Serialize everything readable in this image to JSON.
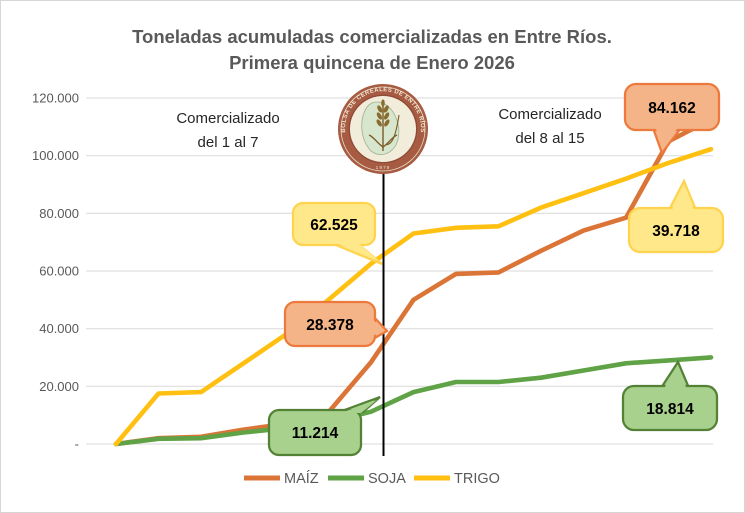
{
  "title": {
    "line1": "Toneladas acumuladas comercializadas en Entre Ríos.",
    "line2": "Primera quincena de Enero 2026"
  },
  "annotations": {
    "left": {
      "line1": "Comercializado",
      "line2": "del 1 al 7"
    },
    "right": {
      "line1": "Comercializado",
      "line2": "del 8 al 15"
    }
  },
  "logo": {
    "ring_text": "BOLSA DE CEREALES DE ENTRE RÍOS",
    "year": "1979",
    "ring_color": "#a65b42",
    "center_color": "#f2ecdb",
    "map_color": "#d9e6ce"
  },
  "legend": [
    {
      "label": "MAÍZ",
      "color": "#db7437"
    },
    {
      "label": "SOJA",
      "color": "#5fa346"
    },
    {
      "label": "TRIGO",
      "color": "#ffc011"
    }
  ],
  "callouts": [
    {
      "value": "62.525",
      "series": "TRIGO",
      "period": "del 1 al 7",
      "fill": "#ffe88a",
      "border": "#ffd34d"
    },
    {
      "value": "28.378",
      "series": "MAÍZ",
      "period": "del 1 al 7",
      "fill": "#f5b488",
      "border": "#ec7a3d"
    },
    {
      "value": "11.214",
      "series": "SOJA",
      "period": "del 1 al 7",
      "fill": "#a9d18e",
      "border": "#538135"
    },
    {
      "value": "84.162",
      "series": "MAÍZ",
      "period": "del 8 al 15",
      "fill": "#f5b488",
      "border": "#ec7a3d"
    },
    {
      "value": "39.718",
      "series": "TRIGO",
      "period": "del 8 al 15",
      "fill": "#ffe88a",
      "border": "#ffd34d"
    },
    {
      "value": "18.814",
      "series": "SOJA",
      "period": "del 8 al 15",
      "fill": "#a9d18e",
      "border": "#538135"
    }
  ],
  "chart_data": {
    "type": "line",
    "title": "Toneladas acumuladas comercializadas en Entre Ríos. Primera quincena de Enero 2026",
    "days": [
      1,
      2,
      3,
      4,
      5,
      6,
      7,
      8,
      9,
      10,
      11,
      12,
      13,
      14,
      15
    ],
    "x_tick_labels_visible": false,
    "ylim": [
      0,
      120000
    ],
    "grid": true,
    "legend_position": "bottom",
    "yticks": [
      {
        "label": "120.000",
        "value": 120000
      },
      {
        "label": "100.000",
        "value": 100000
      },
      {
        "label": "80.000",
        "value": 80000
      },
      {
        "label": "60.000",
        "value": 60000
      },
      {
        "label": "40.000",
        "value": 40000
      },
      {
        "label": "20.000",
        "value": 20000
      },
      {
        "label": "-",
        "value": 0
      }
    ],
    "series": [
      {
        "name": "MAÍZ",
        "color": "#db7437",
        "values": [
          0,
          2000,
          2500,
          5000,
          7000,
          11000,
          28378,
          50000,
          59000,
          59500,
          67000,
          74000,
          78500,
          105000,
          112540
        ]
      },
      {
        "name": "SOJA",
        "color": "#5fa346",
        "values": [
          0,
          1800,
          2000,
          4000,
          5500,
          7500,
          11214,
          18000,
          21500,
          21500,
          23000,
          25500,
          28000,
          29000,
          30028
        ]
      },
      {
        "name": "TRIGO",
        "color": "#ffc011",
        "values": [
          0,
          17500,
          18000,
          28000,
          38000,
          50000,
          62525,
          73000,
          75000,
          75500,
          82000,
          87000,
          92000,
          97500,
          102243
        ]
      }
    ],
    "values_estimated_from_pixels": true,
    "period_totals": {
      "MAÍZ": {
        "del_1_al_7": 28378,
        "del_8_al_15": 84162
      },
      "SOJA": {
        "del_1_al_7": 11214,
        "del_8_al_15": 18814
      },
      "TRIGO": {
        "del_1_al_7": 62525,
        "del_8_al_15": 39718
      }
    }
  }
}
